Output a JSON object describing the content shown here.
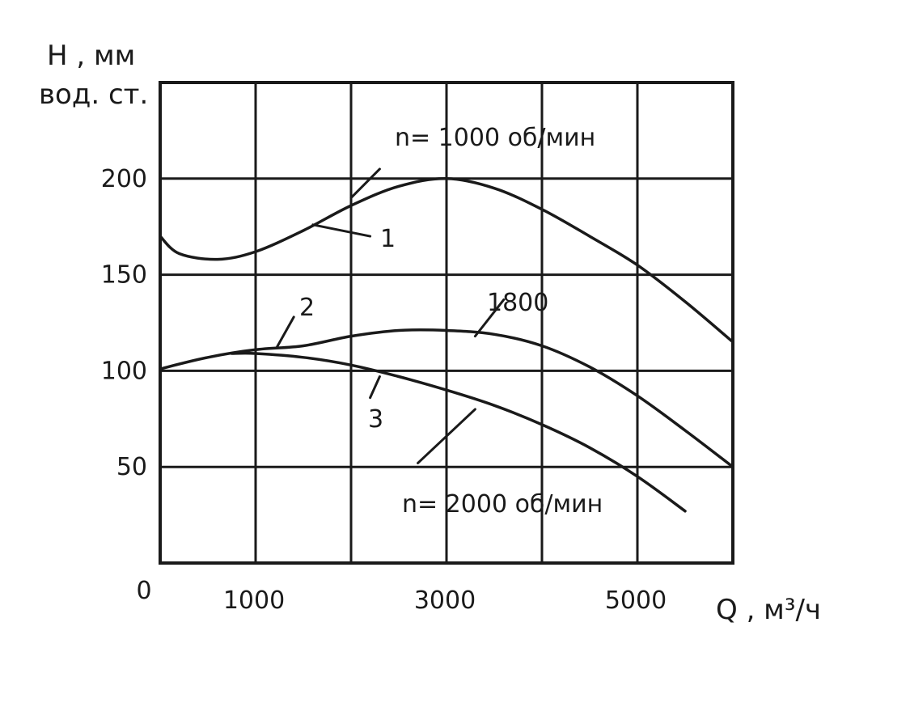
{
  "chart_data": {
    "type": "line",
    "xlabel": "Q , м³/ч",
    "ylabel_line1": "H , мм",
    "ylabel_line2": "вод. ст.",
    "xlim": [
      0,
      6000
    ],
    "ylim": [
      0,
      250
    ],
    "x_tick_labels": [
      "0",
      "1000",
      "3000",
      "5000"
    ],
    "y_tick_labels": [
      {
        "value": 200,
        "label": "200"
      },
      {
        "value": 150,
        "label": "150"
      },
      {
        "value": 100,
        "label": "100"
      },
      {
        "value": 50,
        "label": "50"
      }
    ],
    "grid": true,
    "series": [
      {
        "name": "1",
        "x": [
          0,
          200,
          600,
          1000,
          1500,
          2000,
          2500,
          3000,
          3500,
          4000,
          4500,
          5000,
          5500,
          6000
        ],
        "y": [
          170,
          161,
          158,
          162,
          173,
          186,
          196,
          200,
          195,
          184,
          170,
          155,
          136,
          115
        ]
      },
      {
        "name": "2",
        "x": [
          0,
          500,
          1000,
          1500,
          2000,
          2500,
          3000,
          3500,
          4000,
          4500,
          5000,
          5500,
          6000
        ],
        "y": [
          101,
          107,
          111,
          113,
          118,
          121,
          121,
          119,
          113,
          102,
          87,
          69,
          50
        ]
      },
      {
        "name": "3",
        "x": [
          750,
          1000,
          1500,
          2000,
          2500,
          3000,
          3500,
          4000,
          4500,
          5000,
          5500
        ],
        "y": [
          109,
          109,
          107,
          103,
          97,
          90,
          82,
          72,
          60,
          45,
          27
        ]
      }
    ],
    "annotations": {
      "n1000": "n= 1000 об/мин",
      "n2000": "n= 2000 об/мин",
      "n1800": "1800",
      "label1": "1",
      "label2": "2",
      "label3": "3"
    }
  }
}
